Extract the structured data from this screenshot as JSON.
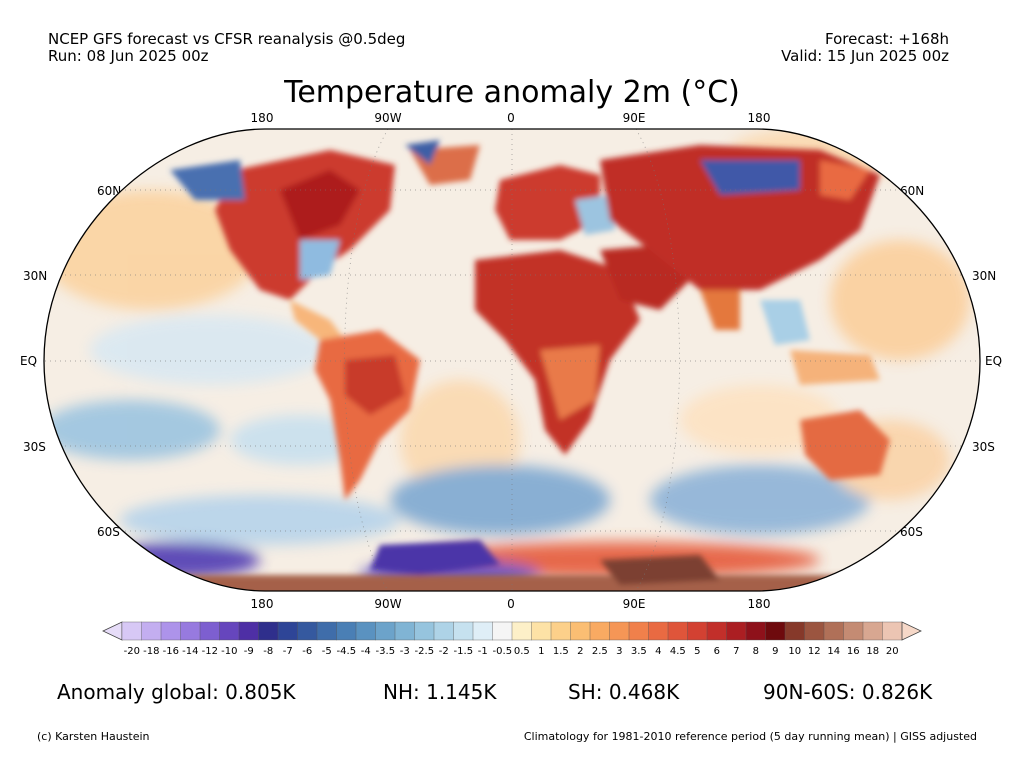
{
  "header": {
    "source_line": "NCEP GFS forecast vs CFSR reanalysis @0.5deg",
    "run_line": "Run: 08 Jun 2025 00z",
    "forecast_line": "Forecast: +168h",
    "valid_line": "Valid: 15 Jun 2025 00z"
  },
  "title": "Temperature anomaly 2m (°C)",
  "map": {
    "longitude_labels": [
      "180",
      "90W",
      "0",
      "90E",
      "180"
    ],
    "latitude_labels_left": [
      "60N",
      "30N",
      "EQ",
      "30S",
      "60S"
    ],
    "latitude_labels_right": [
      "60N",
      "30N",
      "EQ",
      "30S",
      "60S"
    ]
  },
  "colorbar": {
    "tick_labels": [
      "-20",
      "-18",
      "-16",
      "-14",
      "-12",
      "-10",
      "-9",
      "-8",
      "-7",
      "-6",
      "-5",
      "-4.5",
      "-4",
      "-3.5",
      "-3",
      "-2.5",
      "-2",
      "-1.5",
      "-1",
      "-0.5",
      "0.5",
      "1",
      "1.5",
      "2",
      "2.5",
      "3",
      "3.5",
      "4",
      "4.5",
      "5",
      "6",
      "7",
      "8",
      "9",
      "10",
      "12",
      "14",
      "16",
      "18",
      "20"
    ],
    "colors": [
      "#d7c8f5",
      "#c3aef0",
      "#ad93ea",
      "#977adf",
      "#7d5fd0",
      "#6646bd",
      "#4e2fa5",
      "#2f2f8c",
      "#2e4597",
      "#35599f",
      "#3f6daa",
      "#4a7fb5",
      "#5a92c0",
      "#6ca3ca",
      "#80b4d4",
      "#96c4de",
      "#aed3e7",
      "#c6e1ef",
      "#dfeef7",
      "#f5f5f5",
      "#fdf0c8",
      "#fde2a6",
      "#fcd08a",
      "#fbbe73",
      "#f9aa62",
      "#f59656",
      "#f0804b",
      "#e96a42",
      "#df553a",
      "#d34132",
      "#c22f2a",
      "#ab1e22",
      "#8e111a",
      "#6e0a0d",
      "#86392a",
      "#9b5540",
      "#b07058",
      "#c48b73",
      "#d8a791",
      "#ecc5b3"
    ],
    "under_color": "#e6dcf8",
    "over_color": "#f6d8c8"
  },
  "stats": {
    "global": "Anomaly global: 0.805K",
    "nh": "NH: 1.145K",
    "sh": "SH: 0.468K",
    "polar": "90N-60S: 0.826K"
  },
  "footer": {
    "credit": "(c) Karsten Haustein",
    "climatology": "Climatology for 1981-2010 reference period (5 day running mean) | GISS adjusted"
  }
}
